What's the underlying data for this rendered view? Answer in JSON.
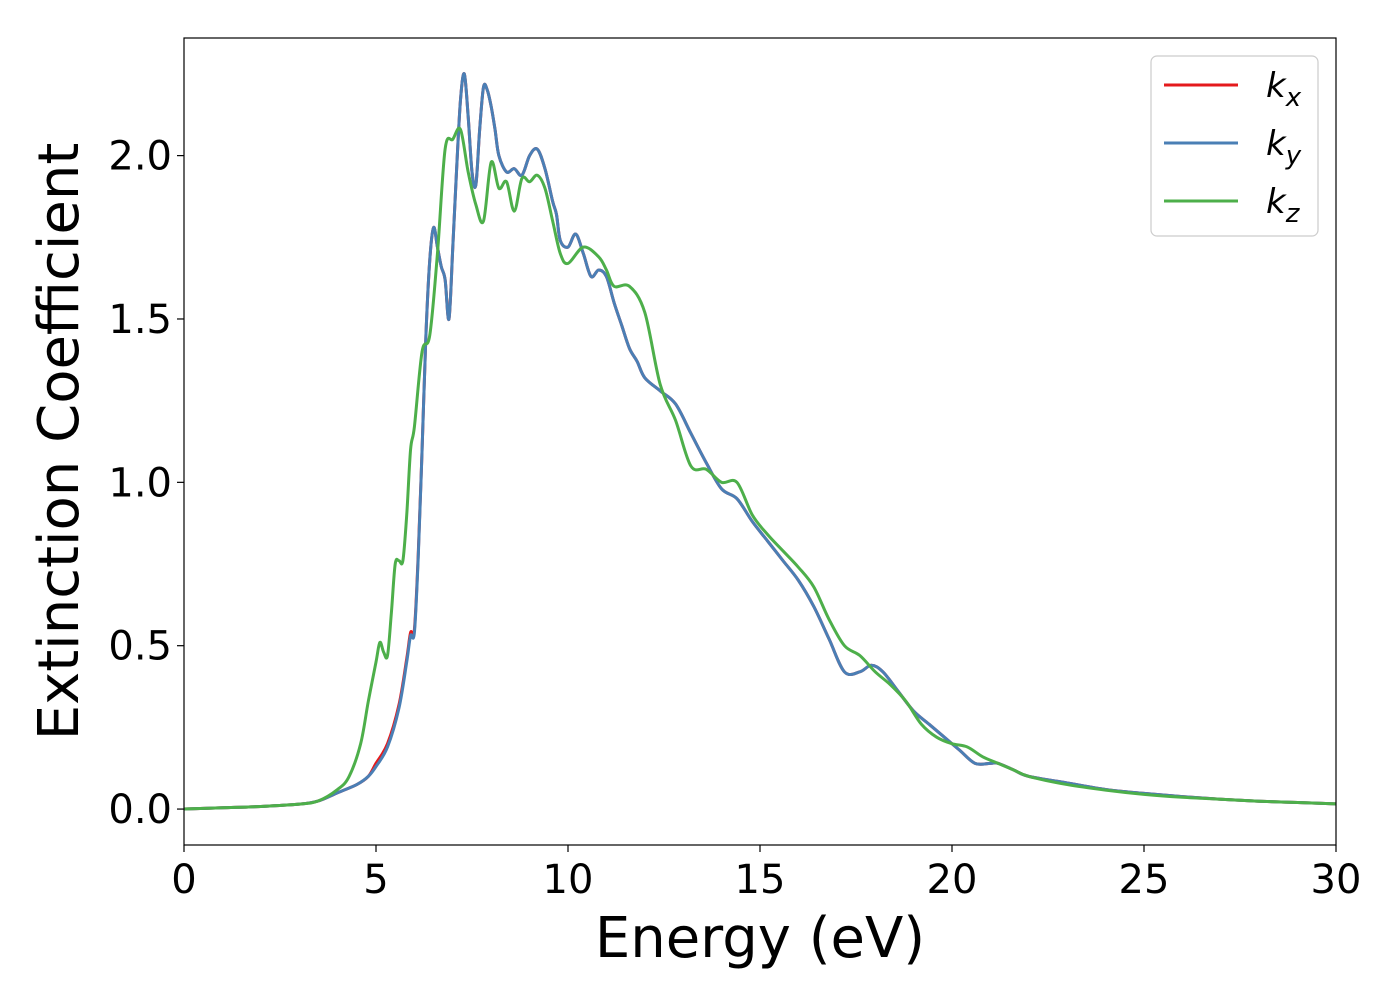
{
  "chart_data": {
    "type": "line",
    "title": "",
    "xlabel": "Energy (eV)",
    "ylabel": "Extinction Coefficient",
    "xlim": [
      0,
      30
    ],
    "ylim": [
      -0.11,
      2.36
    ],
    "xticks": [
      0,
      5,
      10,
      15,
      20,
      25,
      30
    ],
    "xtick_labels": [
      "0",
      "5",
      "10",
      "15",
      "20",
      "25",
      "30"
    ],
    "yticks": [
      0.0,
      0.5,
      1.0,
      1.5,
      2.0
    ],
    "ytick_labels": [
      "0.0",
      "0.5",
      "1.0",
      "1.5",
      "2.0"
    ],
    "grid": false,
    "legend": {
      "position": "top-right"
    },
    "series": [
      {
        "name": "k_x",
        "label_main": "k",
        "label_sub": "x",
        "color": "#e41a1c",
        "x": [
          0,
          1,
          2,
          3,
          3.5,
          4,
          4.5,
          4.8,
          5,
          5.3,
          5.6,
          5.8,
          5.9,
          6.0,
          6.1,
          6.2,
          6.3,
          6.4,
          6.5,
          6.6,
          6.7,
          6.8,
          6.9,
          7.0,
          7.1,
          7.2,
          7.3,
          7.4,
          7.5,
          7.6,
          7.7,
          7.8,
          7.9,
          8.0,
          8.1,
          8.2,
          8.4,
          8.6,
          8.8,
          9.0,
          9.2,
          9.4,
          9.6,
          9.7,
          9.8,
          10.0,
          10.2,
          10.4,
          10.6,
          10.8,
          11.0,
          11.2,
          11.4,
          11.6,
          11.8,
          12.0,
          12.4,
          12.8,
          13.2,
          13.6,
          14.0,
          14.4,
          14.8,
          15.2,
          15.6,
          16.0,
          16.4,
          16.8,
          17.2,
          17.6,
          17.9,
          18.2,
          18.6,
          19.0,
          19.4,
          19.8,
          20.2,
          20.6,
          21.0,
          21.2,
          21.6,
          22.0,
          23.0,
          24.0,
          25.0,
          26.0,
          27.0,
          28.0,
          29.0,
          30.0
        ],
        "y": [
          0.0,
          0.004,
          0.008,
          0.015,
          0.025,
          0.05,
          0.075,
          0.1,
          0.14,
          0.2,
          0.32,
          0.46,
          0.54,
          0.55,
          0.78,
          1.1,
          1.45,
          1.68,
          1.78,
          1.72,
          1.66,
          1.62,
          1.5,
          1.72,
          1.96,
          2.17,
          2.25,
          2.12,
          1.95,
          1.91,
          2.08,
          2.21,
          2.2,
          2.15,
          2.08,
          2.0,
          1.95,
          1.96,
          1.94,
          2.0,
          2.02,
          1.96,
          1.86,
          1.82,
          1.74,
          1.72,
          1.76,
          1.7,
          1.63,
          1.65,
          1.63,
          1.55,
          1.48,
          1.41,
          1.37,
          1.32,
          1.28,
          1.24,
          1.15,
          1.06,
          0.98,
          0.95,
          0.88,
          0.82,
          0.76,
          0.7,
          0.62,
          0.52,
          0.42,
          0.42,
          0.44,
          0.42,
          0.36,
          0.3,
          0.26,
          0.22,
          0.18,
          0.14,
          0.14,
          0.14,
          0.12,
          0.1,
          0.08,
          0.06,
          0.048,
          0.038,
          0.03,
          0.024,
          0.02,
          0.016
        ]
      },
      {
        "name": "k_y",
        "label_main": "k",
        "label_sub": "y",
        "color": "#4a7fb5",
        "x": [
          0,
          1,
          2,
          3,
          3.5,
          4,
          4.5,
          4.8,
          5,
          5.3,
          5.6,
          5.8,
          5.9,
          6.0,
          6.1,
          6.2,
          6.3,
          6.4,
          6.5,
          6.6,
          6.7,
          6.8,
          6.9,
          7.0,
          7.1,
          7.2,
          7.3,
          7.4,
          7.5,
          7.6,
          7.7,
          7.8,
          7.9,
          8.0,
          8.1,
          8.2,
          8.4,
          8.6,
          8.8,
          9.0,
          9.2,
          9.4,
          9.6,
          9.7,
          9.8,
          10.0,
          10.2,
          10.4,
          10.6,
          10.8,
          11.0,
          11.2,
          11.4,
          11.6,
          11.8,
          12.0,
          12.4,
          12.8,
          13.2,
          13.6,
          14.0,
          14.4,
          14.8,
          15.2,
          15.6,
          16.0,
          16.4,
          16.8,
          17.2,
          17.6,
          17.9,
          18.2,
          18.6,
          19.0,
          19.4,
          19.8,
          20.2,
          20.6,
          21.0,
          21.2,
          21.6,
          22.0,
          23.0,
          24.0,
          25.0,
          26.0,
          27.0,
          28.0,
          29.0,
          30.0
        ],
        "y": [
          0.0,
          0.004,
          0.008,
          0.015,
          0.025,
          0.05,
          0.075,
          0.1,
          0.13,
          0.19,
          0.31,
          0.45,
          0.53,
          0.54,
          0.77,
          1.1,
          1.45,
          1.68,
          1.78,
          1.72,
          1.66,
          1.62,
          1.5,
          1.72,
          1.96,
          2.17,
          2.25,
          2.12,
          1.95,
          1.91,
          2.08,
          2.21,
          2.2,
          2.15,
          2.08,
          2.0,
          1.95,
          1.96,
          1.94,
          2.0,
          2.02,
          1.96,
          1.86,
          1.82,
          1.74,
          1.72,
          1.76,
          1.7,
          1.63,
          1.65,
          1.63,
          1.55,
          1.48,
          1.41,
          1.37,
          1.32,
          1.28,
          1.24,
          1.15,
          1.06,
          0.98,
          0.95,
          0.88,
          0.82,
          0.76,
          0.7,
          0.62,
          0.52,
          0.42,
          0.42,
          0.44,
          0.42,
          0.36,
          0.3,
          0.26,
          0.22,
          0.18,
          0.14,
          0.14,
          0.14,
          0.12,
          0.1,
          0.08,
          0.06,
          0.048,
          0.038,
          0.03,
          0.024,
          0.02,
          0.016
        ]
      },
      {
        "name": "k_z",
        "label_main": "k",
        "label_sub": "z",
        "color": "#4daf4a",
        "x": [
          0,
          1,
          2,
          3,
          3.5,
          4,
          4.3,
          4.6,
          4.8,
          5.0,
          5.1,
          5.2,
          5.3,
          5.4,
          5.5,
          5.6,
          5.7,
          5.8,
          5.9,
          6.0,
          6.2,
          6.4,
          6.6,
          6.8,
          7.0,
          7.2,
          7.4,
          7.6,
          7.8,
          8.0,
          8.2,
          8.4,
          8.6,
          8.8,
          9.0,
          9.2,
          9.4,
          9.6,
          9.8,
          10.0,
          10.4,
          10.8,
          11.0,
          11.2,
          11.6,
          12.0,
          12.4,
          12.8,
          13.2,
          13.6,
          14.0,
          14.4,
          14.8,
          15.2,
          15.6,
          16.0,
          16.4,
          16.8,
          17.2,
          17.6,
          18.0,
          18.4,
          18.8,
          19.2,
          19.6,
          20.0,
          20.4,
          20.8,
          21.2,
          21.6,
          22.0,
          23.0,
          24.0,
          25.0,
          26.0,
          27.0,
          28.0,
          29.0,
          30.0
        ],
        "y": [
          0.0,
          0.004,
          0.008,
          0.015,
          0.025,
          0.06,
          0.1,
          0.2,
          0.33,
          0.45,
          0.51,
          0.48,
          0.47,
          0.6,
          0.75,
          0.76,
          0.76,
          0.9,
          1.1,
          1.17,
          1.4,
          1.45,
          1.7,
          2.02,
          2.05,
          2.08,
          1.95,
          1.85,
          1.8,
          1.98,
          1.9,
          1.92,
          1.83,
          1.93,
          1.92,
          1.94,
          1.9,
          1.8,
          1.7,
          1.67,
          1.72,
          1.69,
          1.65,
          1.6,
          1.6,
          1.52,
          1.3,
          1.19,
          1.05,
          1.04,
          1.0,
          1.0,
          0.9,
          0.84,
          0.79,
          0.74,
          0.68,
          0.58,
          0.5,
          0.47,
          0.42,
          0.38,
          0.33,
          0.26,
          0.22,
          0.2,
          0.19,
          0.16,
          0.14,
          0.12,
          0.1,
          0.075,
          0.058,
          0.045,
          0.036,
          0.03,
          0.024,
          0.02,
          0.016
        ]
      }
    ]
  }
}
